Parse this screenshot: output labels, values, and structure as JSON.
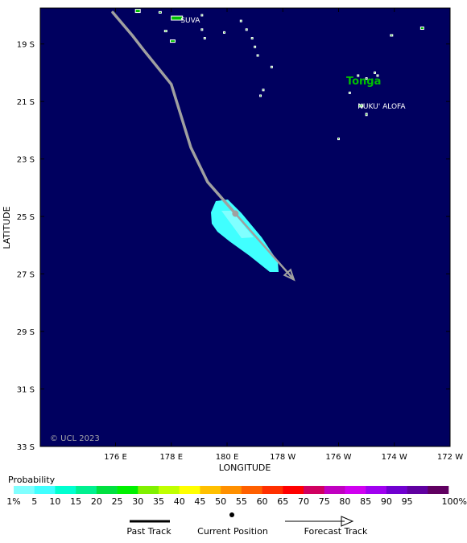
{
  "map": {
    "lon_ticks": [
      {
        "lon": 176,
        "label": "176 E"
      },
      {
        "lon": 178,
        "label": "178 E"
      },
      {
        "lon": 180,
        "label": "180 E"
      },
      {
        "lon": 182,
        "label": "178 W"
      },
      {
        "lon": 184,
        "label": "176 W"
      },
      {
        "lon": 186,
        "label": "174 W"
      },
      {
        "lon": 188,
        "label": "172 W"
      }
    ],
    "lat_ticks": [
      {
        "lat": -19,
        "label": "19 S"
      },
      {
        "lat": -21,
        "label": "21 S"
      },
      {
        "lat": -23,
        "label": "23 S"
      },
      {
        "lat": -25,
        "label": "25 S"
      },
      {
        "lat": -27,
        "label": "27 S"
      },
      {
        "lat": -29,
        "label": "29 S"
      },
      {
        "lat": -31,
        "label": "31 S"
      },
      {
        "lat": -33,
        "label": "33 S"
      }
    ],
    "xlabel": "LONGITUDE",
    "ylabel": "LATITUDE",
    "copyright": "© UCL 2023",
    "colors": {
      "ocean": "#00005f",
      "land": "#00c000",
      "coast": "#ffffff",
      "track": "#a0a0a0",
      "country_label": "#00c000"
    },
    "places": [
      {
        "name": "SUVA",
        "lon": 178.45,
        "lat": -18.14
      },
      {
        "name": "NUKU' ALOFA",
        "lon": 184.8,
        "lat": -21.13
      }
    ],
    "country_labels": [
      {
        "name": "Tonga",
        "lon": 184.9,
        "lat": -20.3
      }
    ],
    "past_track": [
      {
        "lon": 175.9,
        "lat": -17.9
      },
      {
        "lon": 176.6,
        "lat": -18.7
      },
      {
        "lon": 177.0,
        "lat": -19.2
      },
      {
        "lon": 178.0,
        "lat": -20.4
      },
      {
        "lon": 178.7,
        "lat": -22.6
      },
      {
        "lon": 179.3,
        "lat": -23.8
      },
      {
        "lon": 180.3,
        "lat": -24.9
      }
    ],
    "current_position": {
      "lon": 180.3,
      "lat": -24.9
    },
    "forecast_track": [
      {
        "lon": 180.3,
        "lat": -24.9
      },
      {
        "lon": 182.4,
        "lat": -27.2
      }
    ],
    "probability_area_level": "1%"
  },
  "legend": {
    "title": "Probability",
    "scale_labels": [
      "1%",
      "5",
      "10",
      "15",
      "20",
      "25",
      "30",
      "35",
      "40",
      "45",
      "50",
      "55",
      "60",
      "65",
      "70",
      "75",
      "80",
      "85",
      "90",
      "95",
      "100%"
    ],
    "colors": [
      "#80ffff",
      "#40ffff",
      "#00ffd0",
      "#00f090",
      "#00e040",
      "#00f000",
      "#80f000",
      "#c0ff00",
      "#ffff00",
      "#ffc000",
      "#ff9000",
      "#ff6000",
      "#ff3000",
      "#ff0000",
      "#d00060",
      "#c000c0",
      "#d000f0",
      "#a000f0",
      "#7000d0",
      "#6000a0",
      "#600060"
    ],
    "past_track_label": "Past Track",
    "current_position_label": "Current Position",
    "forecast_track_label": "Forecast Track"
  }
}
